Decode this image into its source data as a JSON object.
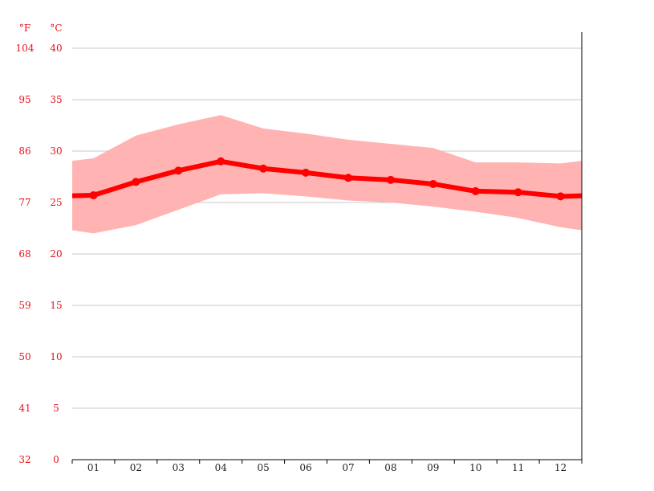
{
  "chart_data": {
    "type": "line",
    "units_f_label": "°F",
    "units_c_label": "°C",
    "categories": [
      "01",
      "02",
      "03",
      "04",
      "05",
      "06",
      "07",
      "08",
      "09",
      "10",
      "11",
      "12"
    ],
    "ylim": [
      0,
      40
    ],
    "celsius_ticks": [
      "0",
      "5",
      "10",
      "15",
      "20",
      "25",
      "30",
      "35",
      "40"
    ],
    "fahrenheit_ticks": [
      "32",
      "41",
      "50",
      "59",
      "68",
      "77",
      "86",
      "95",
      "104"
    ],
    "grid": true,
    "series": [
      {
        "values": [
          25.7,
          27.0,
          28.1,
          29.0,
          28.3,
          27.9,
          27.4,
          27.2,
          26.8,
          26.1,
          26.0,
          25.6
        ]
      },
      {
        "values": [
          29.3,
          31.5,
          32.6,
          33.5,
          32.2,
          31.7,
          31.1,
          30.7,
          30.3,
          28.9,
          28.9,
          28.8
        ]
      },
      {
        "values": [
          22.0,
          22.8,
          24.3,
          25.8,
          25.9,
          25.6,
          25.2,
          25.0,
          24.6,
          24.1,
          23.5,
          22.6
        ]
      }
    ],
    "colors": {
      "line": "#ff0000",
      "band": "#ffb3b3",
      "label": "#e8101a",
      "grid": "#c8c8c8",
      "axis": "#000000",
      "tick_label": "#222222"
    }
  }
}
